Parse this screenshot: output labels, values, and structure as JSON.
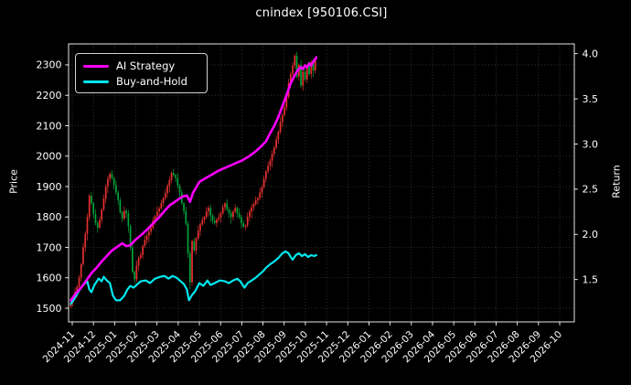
{
  "chart_data": {
    "type": "candlestick+line",
    "title": "cnindex [950106.CSI]",
    "style": {
      "background": "#000000",
      "foreground": "#ffffff",
      "grid_color": "#3f3f3f",
      "grid_style": "dotted",
      "legend_edge_color": "#d2d2d2"
    },
    "x_axis": {
      "tick_labels": [
        "2024-11",
        "2024-12",
        "2025-01",
        "2025-02",
        "2025-03",
        "2025-04",
        "2025-05",
        "2025-06",
        "2025-07",
        "2025-08",
        "2025-09",
        "2025-10",
        "2025-11",
        "2025-12",
        "2026-01",
        "2026-02",
        "2026-03",
        "2026-04",
        "2026-05",
        "2026-06",
        "2026-07",
        "2026-08",
        "2026-09",
        "2026-10"
      ],
      "note": "daily data covers 2024-11 through late 2025-10; axis extends empty to 2026-10"
    },
    "left_axis": {
      "label": "Price",
      "ticks": [
        1500,
        1600,
        1700,
        1800,
        1900,
        2000,
        2100,
        2200,
        2300
      ],
      "range": [
        1455,
        2369
      ]
    },
    "right_axis": {
      "label": "Return",
      "ticks": [
        1.5,
        2.0,
        2.5,
        3.0,
        3.5,
        4.0
      ],
      "range": [
        1.031,
        4.108
      ]
    },
    "candles": {
      "name": "cnindex daily candlesticks",
      "axis": "left",
      "up_color": "#e83030",
      "down_color": "#00a43a",
      "step_days": 2,
      "first_open": 1506,
      "upper_wicks": [
        12,
        5,
        16,
        7,
        10,
        4,
        14,
        8,
        11,
        6
      ],
      "lower_wicks": [
        6,
        14,
        8,
        17,
        5,
        12,
        7,
        15,
        22,
        11
      ],
      "closes": [
        1520,
        1535,
        1552,
        1570,
        1600,
        1645,
        1700,
        1745,
        1800,
        1870,
        1845,
        1810,
        1780,
        1765,
        1790,
        1825,
        1860,
        1900,
        1925,
        1942,
        1928,
        1905,
        1880,
        1855,
        1815,
        1795,
        1820,
        1812,
        1770,
        1700,
        1620,
        1595,
        1640,
        1665,
        1675,
        1705,
        1725,
        1738,
        1752,
        1764,
        1788,
        1802,
        1818,
        1828,
        1846,
        1862,
        1878,
        1902,
        1922,
        1945,
        1938,
        1928,
        1902,
        1880,
        1845,
        1820,
        1778,
        1680,
        1585,
        1720,
        1690,
        1730,
        1755,
        1775,
        1790,
        1800,
        1818,
        1830,
        1805,
        1788,
        1780,
        1792,
        1798,
        1812,
        1832,
        1845,
        1825,
        1812,
        1800,
        1818,
        1830,
        1812,
        1800,
        1780,
        1768,
        1772,
        1800,
        1818,
        1832,
        1842,
        1855,
        1862,
        1880,
        1898,
        1925,
        1950,
        1968,
        1985,
        2008,
        2028,
        2055,
        2080,
        2112,
        2135,
        2160,
        2195,
        2240,
        2270,
        2298,
        2330,
        2262,
        2300,
        2232,
        2278,
        2252,
        2298,
        2270,
        2308,
        2282,
        2318
      ]
    },
    "series": [
      {
        "name": "AI Strategy",
        "axis": "right",
        "color": "#ff00ff",
        "points": [
          [
            0,
            1.27
          ],
          [
            5,
            1.35
          ],
          [
            10,
            1.41
          ],
          [
            15,
            1.49
          ],
          [
            20,
            1.57
          ],
          [
            25,
            1.63
          ],
          [
            30,
            1.7
          ],
          [
            35,
            1.76
          ],
          [
            40,
            1.82
          ],
          [
            45,
            1.86
          ],
          [
            50,
            1.9
          ],
          [
            54,
            1.87
          ],
          [
            58,
            1.88
          ],
          [
            62,
            1.93
          ],
          [
            68,
            1.99
          ],
          [
            74,
            2.05
          ],
          [
            80,
            2.12
          ],
          [
            86,
            2.19
          ],
          [
            92,
            2.27
          ],
          [
            97,
            2.33
          ],
          [
            100,
            2.35
          ],
          [
            105,
            2.39
          ],
          [
            109,
            2.42
          ],
          [
            113,
            2.43
          ],
          [
            116,
            2.36
          ],
          [
            119,
            2.46
          ],
          [
            125,
            2.58
          ],
          [
            131,
            2.62
          ],
          [
            137,
            2.66
          ],
          [
            143,
            2.7
          ],
          [
            149,
            2.73
          ],
          [
            155,
            2.76
          ],
          [
            161,
            2.79
          ],
          [
            167,
            2.82
          ],
          [
            173,
            2.86
          ],
          [
            179,
            2.91
          ],
          [
            185,
            2.97
          ],
          [
            190,
            3.03
          ],
          [
            194,
            3.12
          ],
          [
            198,
            3.2
          ],
          [
            202,
            3.3
          ],
          [
            206,
            3.42
          ],
          [
            210,
            3.54
          ],
          [
            214,
            3.67
          ],
          [
            218,
            3.76
          ],
          [
            221,
            3.82
          ],
          [
            224,
            3.85
          ],
          [
            226,
            3.83
          ],
          [
            228,
            3.87
          ],
          [
            230,
            3.85
          ],
          [
            232,
            3.89
          ],
          [
            234,
            3.87
          ],
          [
            236,
            3.91
          ],
          [
            238,
            3.94
          ],
          [
            239,
            3.96
          ]
        ]
      },
      {
        "name": "Buy-and-Hold",
        "axis": "right",
        "color": "#00e8ee",
        "points": [
          [
            0,
            1.23
          ],
          [
            3,
            1.28
          ],
          [
            7,
            1.36
          ],
          [
            11,
            1.43
          ],
          [
            16,
            1.48
          ],
          [
            18,
            1.39
          ],
          [
            20,
            1.36
          ],
          [
            23,
            1.44
          ],
          [
            27,
            1.51
          ],
          [
            30,
            1.48
          ],
          [
            32,
            1.53
          ],
          [
            35,
            1.49
          ],
          [
            38,
            1.46
          ],
          [
            41,
            1.32
          ],
          [
            44,
            1.27
          ],
          [
            48,
            1.27
          ],
          [
            52,
            1.32
          ],
          [
            55,
            1.39
          ],
          [
            58,
            1.43
          ],
          [
            61,
            1.41
          ],
          [
            64,
            1.44
          ],
          [
            68,
            1.48
          ],
          [
            73,
            1.49
          ],
          [
            77,
            1.46
          ],
          [
            82,
            1.51
          ],
          [
            87,
            1.53
          ],
          [
            91,
            1.54
          ],
          [
            95,
            1.51
          ],
          [
            99,
            1.54
          ],
          [
            103,
            1.52
          ],
          [
            106,
            1.49
          ],
          [
            110,
            1.45
          ],
          [
            113,
            1.39
          ],
          [
            115,
            1.27
          ],
          [
            118,
            1.33
          ],
          [
            121,
            1.37
          ],
          [
            125,
            1.46
          ],
          [
            129,
            1.43
          ],
          [
            133,
            1.49
          ],
          [
            136,
            1.44
          ],
          [
            140,
            1.46
          ],
          [
            145,
            1.49
          ],
          [
            150,
            1.48
          ],
          [
            154,
            1.46
          ],
          [
            158,
            1.49
          ],
          [
            162,
            1.51
          ],
          [
            165,
            1.48
          ],
          [
            169,
            1.41
          ],
          [
            172,
            1.46
          ],
          [
            176,
            1.49
          ],
          [
            180,
            1.52
          ],
          [
            184,
            1.56
          ],
          [
            187,
            1.59
          ],
          [
            190,
            1.63
          ],
          [
            194,
            1.67
          ],
          [
            198,
            1.7
          ],
          [
            202,
            1.74
          ],
          [
            206,
            1.79
          ],
          [
            209,
            1.81
          ],
          [
            212,
            1.79
          ],
          [
            214,
            1.75
          ],
          [
            216,
            1.72
          ],
          [
            219,
            1.77
          ],
          [
            222,
            1.79
          ],
          [
            225,
            1.76
          ],
          [
            228,
            1.78
          ],
          [
            231,
            1.75
          ],
          [
            234,
            1.77
          ],
          [
            237,
            1.76
          ],
          [
            239,
            1.77
          ]
        ]
      }
    ]
  }
}
